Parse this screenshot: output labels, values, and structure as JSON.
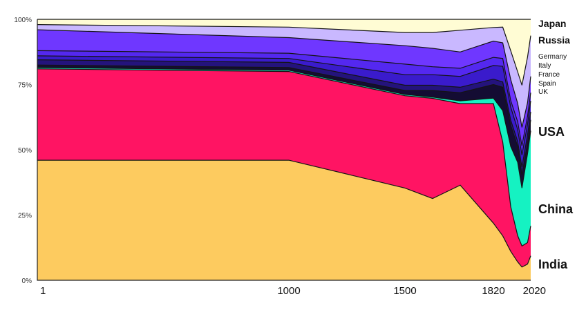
{
  "chart_data": {
    "type": "area",
    "stacked": true,
    "normalized": true,
    "x": [
      1,
      1000,
      1500,
      1600,
      1700,
      1820,
      1870,
      1913,
      1950,
      1973,
      2003,
      2020
    ],
    "x_tick_labels": [
      "1",
      "1000",
      "1500",
      "1820",
      "2020"
    ],
    "x_tick_values": [
      1,
      1000,
      1500,
      1820,
      2020
    ],
    "y_tick_labels": [
      "0%",
      "25%",
      "50%",
      "75%",
      "100%"
    ],
    "y_tick_values": [
      0,
      25,
      50,
      75,
      100
    ],
    "ylim": [
      0,
      100
    ],
    "grid": false,
    "legend": "inline-right",
    "series": [
      {
        "name": "India",
        "color": "#FDCB5F",
        "values": [
          46,
          46,
          35,
          31,
          35,
          21,
          17,
          11,
          7,
          5,
          6,
          9
        ]
      },
      {
        "name": "China",
        "color": "#FF1463",
        "values": [
          35,
          34,
          35,
          38,
          30,
          44,
          36,
          17,
          10,
          8,
          8,
          11
        ]
      },
      {
        "name": "USA",
        "color": "#15F2C2",
        "values": [
          0.5,
          0.5,
          0.5,
          0.5,
          1,
          2,
          12,
          23,
          28,
          22,
          33,
          35
        ]
      },
      {
        "name": "UK",
        "color": "#140C33",
        "values": [
          1,
          1,
          1.5,
          2.5,
          3,
          5,
          9,
          8,
          6,
          5,
          4,
          4
        ]
      },
      {
        "name": "Spain",
        "color": "#24137C",
        "values": [
          2,
          2,
          2,
          2,
          2,
          2,
          2,
          2,
          2,
          3,
          3,
          3
        ]
      },
      {
        "name": "France",
        "color": "#3A1BCC",
        "values": [
          1.5,
          1.5,
          4,
          4,
          4,
          5,
          6,
          5,
          4.5,
          4.5,
          4,
          4
        ]
      },
      {
        "name": "Italy",
        "color": "#5428F0",
        "values": [
          2,
          2,
          4,
          3,
          3,
          3,
          3,
          2.5,
          3,
          3.5,
          3,
          3
        ]
      },
      {
        "name": "Germany",
        "color": "#6F37FF",
        "values": [
          8,
          6,
          7,
          7,
          6,
          6,
          6,
          8,
          7,
          7,
          5,
          6
        ]
      },
      {
        "name": "Russia",
        "color": "#C9B8FF",
        "values": [
          2,
          4,
          5,
          6,
          8,
          5,
          6,
          11,
          12,
          16,
          17,
          15
        ]
      },
      {
        "name": "Japan",
        "color": "#FFFCD4",
        "values": [
          2,
          3,
          5,
          5,
          4,
          3,
          3,
          12,
          20,
          25,
          14,
          6
        ]
      }
    ],
    "labels_font_px": {
      "Japan": 14,
      "Russia": 14,
      "Germany": 10,
      "Italy": 10,
      "France": 10,
      "Spain": 10,
      "UK": 10,
      "USA": 18,
      "China": 18,
      "India": 18
    }
  }
}
